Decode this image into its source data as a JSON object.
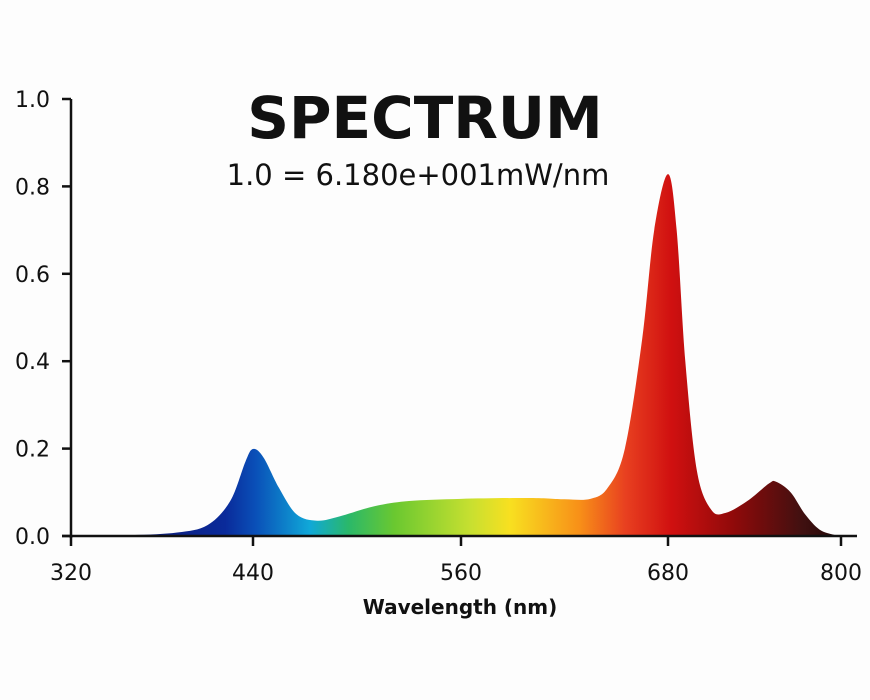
{
  "chart_data": {
    "type": "area",
    "title": "SPECTRUM",
    "subtitle": "1.0 = 6.180e+001mW/nm",
    "xlabel": "Wavelength (nm)",
    "ylabel": "",
    "xlim": [
      320,
      800
    ],
    "ylim": [
      0,
      1.0
    ],
    "x_ticks": [
      "320",
      "440",
      "560",
      "680",
      "800"
    ],
    "y_ticks": [
      "0.0",
      "0.2",
      "0.4",
      "0.6",
      "0.8",
      "1.0"
    ],
    "grid": false,
    "fill": "spectral gradient by wavelength",
    "x": [
      320,
      360,
      390,
      410,
      425,
      435,
      440,
      446,
      455,
      465,
      477,
      490,
      510,
      530,
      560,
      600,
      620,
      635,
      645,
      655,
      665,
      672,
      680,
      686,
      692,
      700,
      710,
      720,
      735,
      750,
      755,
      765,
      775,
      785,
      795,
      800
    ],
    "y": [
      0,
      0.002,
      0.008,
      0.025,
      0.08,
      0.17,
      0.199,
      0.18,
      0.11,
      0.05,
      0.035,
      0.045,
      0.068,
      0.08,
      0.085,
      0.087,
      0.084,
      0.085,
      0.11,
      0.2,
      0.45,
      0.7,
      0.828,
      0.7,
      0.4,
      0.15,
      0.06,
      0.053,
      0.08,
      0.12,
      0.124,
      0.1,
      0.05,
      0.015,
      0.003,
      0
    ]
  }
}
